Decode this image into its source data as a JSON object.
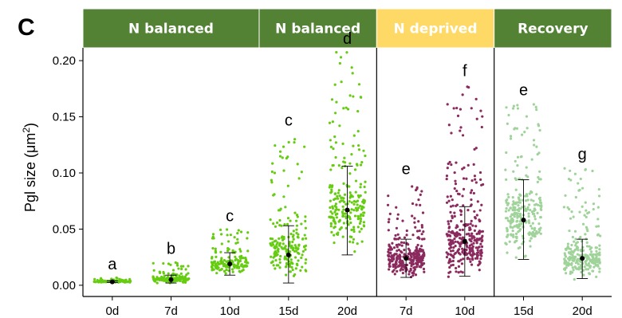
{
  "chart_data": {
    "type": "scatter",
    "panel_label": "C",
    "ylabel_prefix": "Pgl size (μm",
    "ylabel_sup": "2",
    "ylabel_suffix": ")",
    "ylim": [
      -0.01,
      0.21
    ],
    "yticks": [
      0.0,
      0.05,
      0.1,
      0.15,
      0.2
    ],
    "ytick_labels": [
      "0.00",
      "0.05",
      "0.10",
      "0.15",
      "0.20"
    ],
    "grid": false,
    "header_groups": [
      {
        "label": "N balanced",
        "color": "#548235",
        "text_color": "#ffffff",
        "span": [
          0,
          2
        ]
      },
      {
        "label": "N balanced",
        "color": "#548235",
        "text_color": "#ffffff",
        "span": [
          3,
          4
        ]
      },
      {
        "label": "N deprived",
        "color": "#ffd966",
        "text_color": "#ffffff",
        "span": [
          5,
          6
        ]
      },
      {
        "label": "Recovery",
        "color": "#548235",
        "text_color": "#ffffff",
        "span": [
          7,
          8
        ]
      }
    ],
    "series": [
      {
        "category": "0d",
        "group": "N balanced",
        "color": "#66cc11",
        "mean": 0.003,
        "err_low": 0.0025,
        "err_high": 0.004,
        "max": 0.007,
        "n": 120,
        "letter": "a"
      },
      {
        "category": "7d",
        "group": "N balanced",
        "color": "#66cc11",
        "mean": 0.005,
        "err_low": 0.002,
        "err_high": 0.009,
        "max": 0.021,
        "n": 150,
        "letter": "b"
      },
      {
        "category": "10d",
        "group": "N balanced",
        "color": "#66cc11",
        "mean": 0.019,
        "err_low": 0.009,
        "err_high": 0.029,
        "max": 0.05,
        "n": 150,
        "letter": "c"
      },
      {
        "category": "15d",
        "group": "N balanced",
        "color": "#66cc11",
        "mean": 0.027,
        "err_low": 0.002,
        "err_high": 0.053,
        "max": 0.135,
        "n": 200,
        "letter": "c"
      },
      {
        "category": "20d",
        "group": "N balanced",
        "color": "#66cc11",
        "mean": 0.067,
        "err_low": 0.027,
        "err_high": 0.106,
        "max": 0.208,
        "n": 220,
        "letter": "d"
      },
      {
        "category": "7d",
        "group": "N deprived",
        "color": "#8b2a5e",
        "mean": 0.024,
        "err_low": 0.007,
        "err_high": 0.041,
        "max": 0.092,
        "n": 300,
        "letter": "e"
      },
      {
        "category": "10d",
        "group": "N deprived",
        "color": "#8b2a5e",
        "mean": 0.039,
        "err_low": 0.008,
        "err_high": 0.07,
        "max": 0.179,
        "n": 320,
        "letter": "f"
      },
      {
        "category": "15d",
        "group": "Recovery",
        "color": "#9fd39a",
        "mean": 0.058,
        "err_low": 0.023,
        "err_high": 0.094,
        "max": 0.162,
        "n": 260,
        "letter": "e"
      },
      {
        "category": "20d",
        "group": "Recovery",
        "color": "#9fd39a",
        "mean": 0.024,
        "err_low": 0.006,
        "err_high": 0.041,
        "max": 0.105,
        "n": 260,
        "letter": "g"
      }
    ]
  }
}
